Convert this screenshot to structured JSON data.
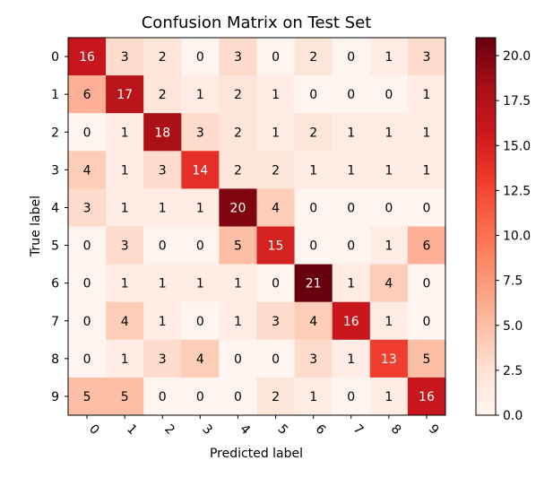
{
  "chart_data": {
    "type": "heatmap",
    "title": "Confusion Matrix on Test Set",
    "xlabel": "Predicted label",
    "ylabel": "True label",
    "x_categories": [
      "0",
      "1",
      "2",
      "3",
      "4",
      "5",
      "6",
      "7",
      "8",
      "9"
    ],
    "y_categories": [
      "0",
      "1",
      "2",
      "3",
      "4",
      "5",
      "6",
      "7",
      "8",
      "9"
    ],
    "matrix": [
      [
        16,
        3,
        2,
        0,
        3,
        0,
        2,
        0,
        1,
        3
      ],
      [
        6,
        17,
        2,
        1,
        2,
        1,
        0,
        0,
        0,
        1
      ],
      [
        0,
        1,
        18,
        3,
        2,
        1,
        2,
        1,
        1,
        1
      ],
      [
        4,
        1,
        3,
        14,
        2,
        2,
        1,
        1,
        1,
        1
      ],
      [
        3,
        1,
        1,
        1,
        20,
        4,
        0,
        0,
        0,
        0
      ],
      [
        0,
        3,
        0,
        0,
        5,
        15,
        0,
        0,
        1,
        6
      ],
      [
        0,
        1,
        1,
        1,
        1,
        0,
        21,
        1,
        4,
        0
      ],
      [
        0,
        4,
        1,
        0,
        1,
        3,
        4,
        16,
        1,
        0
      ],
      [
        0,
        1,
        3,
        4,
        0,
        0,
        3,
        1,
        13,
        5
      ],
      [
        5,
        5,
        0,
        0,
        0,
        2,
        1,
        0,
        1,
        16
      ]
    ],
    "colorbar": {
      "min": 0,
      "max": 21,
      "ticks": [
        "0.0",
        "2.5",
        "5.0",
        "7.5",
        "10.0",
        "12.5",
        "15.0",
        "17.5",
        "20.0"
      ],
      "tick_values": [
        0,
        2.5,
        5,
        7.5,
        10,
        12.5,
        15,
        17.5,
        20
      ],
      "colormap": "Reds"
    },
    "x_tick_rotation_deg": 45,
    "grid": false
  }
}
